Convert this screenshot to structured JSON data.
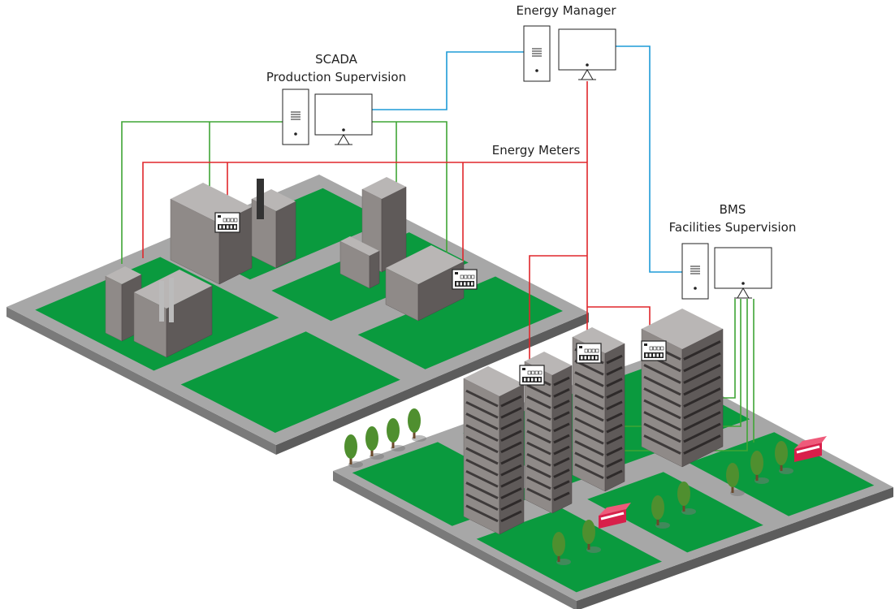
{
  "nodes": [
    {
      "title": "Energy Manager"
    },
    {
      "title": "SCADA",
      "subtitle": "Production Supervision"
    },
    {
      "title": "BMS",
      "subtitle": "Facilities Supervision"
    }
  ],
  "network": {
    "label": "Energy Meters"
  }
}
